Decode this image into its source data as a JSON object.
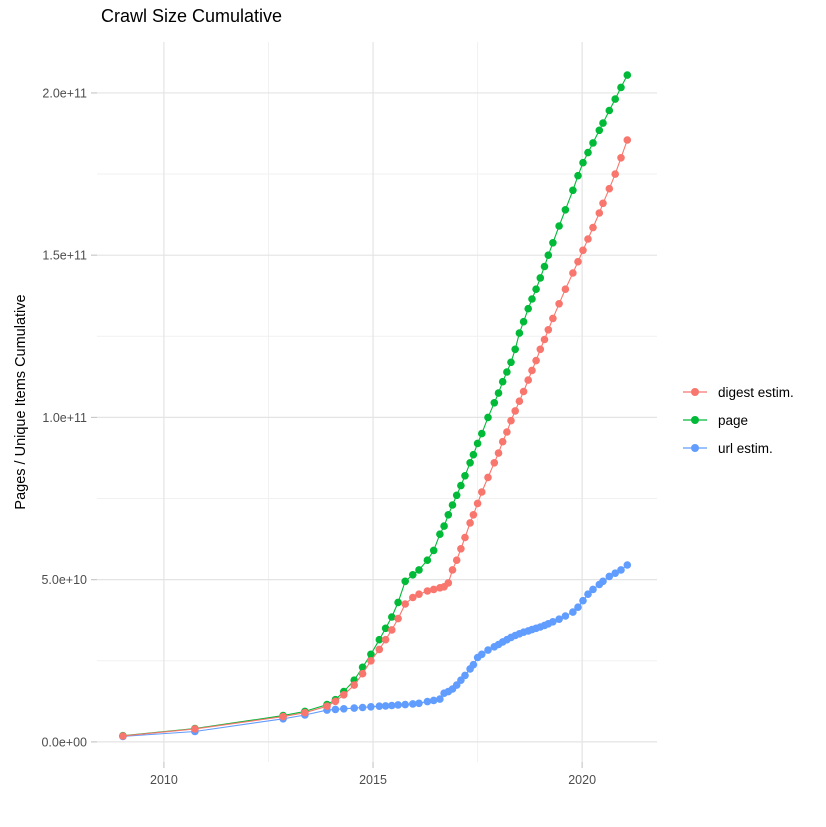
{
  "chart_data": {
    "type": "line",
    "title": "Crawl Size Cumulative",
    "xlabel": "",
    "ylabel": "Pages / Unique Items Cumulative",
    "x": [
      2009.02,
      2010.74,
      2012.85,
      2013.37,
      2013.9,
      2014.1,
      2014.3,
      2014.55,
      2014.75,
      2014.95,
      2015.15,
      2015.3,
      2015.45,
      2015.6,
      2015.77,
      2015.95,
      2016.1,
      2016.3,
      2016.45,
      2016.6,
      2016.7,
      2016.8,
      2016.9,
      2017.0,
      2017.1,
      2017.2,
      2017.32,
      2017.4,
      2017.5,
      2017.6,
      2017.75,
      2017.9,
      2018.0,
      2018.1,
      2018.2,
      2018.3,
      2018.4,
      2018.5,
      2018.6,
      2018.71,
      2018.8,
      2018.9,
      2019.0,
      2019.1,
      2019.19,
      2019.3,
      2019.45,
      2019.6,
      2019.78,
      2019.9,
      2020.02,
      2020.14,
      2020.26,
      2020.41,
      2020.5,
      2020.65,
      2020.79,
      2020.93,
      2021.08
    ],
    "series": [
      {
        "name": "digest estim.",
        "color": "#F8766D",
        "values": [
          1800000000.0,
          4000000000.0,
          7800000000.0,
          9000000000.0,
          11000000000.0,
          12500000000.0,
          14500000000.0,
          17500000000.0,
          21000000000.0,
          25000000000.0,
          28500000000.0,
          31500000000.0,
          34500000000.0,
          38000000000.0,
          42500000000.0,
          44500000000.0,
          45500000000.0,
          46500000000.0,
          47000000000.0,
          47500000000.0,
          47800000000.0,
          49000000000.0,
          53000000000.0,
          56000000000.0,
          59500000000.0,
          63000000000.0,
          67500000000.0,
          70000000000.0,
          73500000000.0,
          77000000000.0,
          81500000000.0,
          86000000000.0,
          89000000000.0,
          92500000000.0,
          95500000000.0,
          99000000000.0,
          102000000000.0,
          105000000000.0,
          108000000000.0,
          111500000000.0,
          114500000000.0,
          117500000000.0,
          121000000000.0,
          124000000000.0,
          127000000000.0,
          130500000000.0,
          135000000000.0,
          139500000000.0,
          144500000000.0,
          148000000000.0,
          151500000000.0,
          155000000000.0,
          158500000000.0,
          163000000000.0,
          166000000000.0,
          170500000000.0,
          175000000000.0,
          180000000000.0,
          185500000000.0
        ]
      },
      {
        "name": "page",
        "color": "#00BA38",
        "values": [
          1900000000.0,
          4100000000.0,
          8100000000.0,
          9400000000.0,
          11500000000.0,
          13000000000.0,
          15500000000.0,
          19000000000.0,
          23000000000.0,
          27000000000.0,
          31500000000.0,
          35000000000.0,
          38500000000.0,
          43000000000.0,
          49500000000.0,
          51500000000.0,
          53000000000.0,
          56000000000.0,
          59000000000.0,
          64000000000.0,
          66500000000.0,
          70000000000.0,
          73000000000.0,
          76000000000.0,
          79000000000.0,
          82000000000.0,
          86000000000.0,
          88500000000.0,
          92000000000.0,
          95000000000.0,
          100000000000.0,
          104500000000.0,
          107500000000.0,
          111000000000.0,
          114000000000.0,
          117000000000.0,
          121000000000.0,
          126000000000.0,
          129500000000.0,
          133500000000.0,
          136500000000.0,
          139500000000.0,
          143000000000.0,
          146500000000.0,
          150000000000.0,
          153800000000.0,
          159000000000.0,
          164000000000.0,
          170000000000.0,
          174500000000.0,
          178500000000.0,
          181600000000.0,
          184600000000.0,
          188500000000.0,
          190700000000.0,
          194600000000.0,
          198100000000.0,
          201700000000.0,
          205500000000.0
        ]
      },
      {
        "name": "url estim.",
        "color": "#619CFF",
        "values": [
          1700000000.0,
          3200000000.0,
          7100000000.0,
          8300000000.0,
          9800000000.0,
          10000000000.0,
          10200000000.0,
          10400000000.0,
          10600000000.0,
          10800000000.0,
          11000000000.0,
          11100000000.0,
          11200000000.0,
          11400000000.0,
          11500000000.0,
          11700000000.0,
          11900000000.0,
          12400000000.0,
          12800000000.0,
          13200000000.0,
          15000000000.0,
          15500000000.0,
          16300000000.0,
          17500000000.0,
          19000000000.0,
          20500000000.0,
          22500000000.0,
          23800000000.0,
          26000000000.0,
          27000000000.0,
          28300000000.0,
          29300000000.0,
          30000000000.0,
          30800000000.0,
          31500000000.0,
          32200000000.0,
          32800000000.0,
          33300000000.0,
          33800000000.0,
          34200000000.0,
          34600000000.0,
          35000000000.0,
          35400000000.0,
          35900000000.0,
          36400000000.0,
          37000000000.0,
          37800000000.0,
          38800000000.0,
          40000000000.0,
          41500000000.0,
          43500000000.0,
          45500000000.0,
          47000000000.0,
          48500000000.0,
          49500000000.0,
          51000000000.0,
          52000000000.0,
          53000000000.0,
          54500000000.0
        ]
      }
    ],
    "draw_order": [
      "url estim.",
      "page",
      "digest estim."
    ],
    "xlim": [
      2008.4,
      2021.79
    ],
    "ylim": [
      -6200000000.0,
      215700000000.0
    ],
    "x_ticks": {
      "values": [
        2010,
        2015,
        2020
      ],
      "labels": [
        "2010",
        "2015",
        "2020"
      ],
      "minor": [
        2012.5,
        2017.5
      ]
    },
    "y_ticks": {
      "values": [
        0,
        50000000000.0,
        100000000000.0,
        150000000000.0,
        200000000000.0
      ],
      "labels": [
        "0.0e+00",
        "5.0e+10",
        "1.0e+11",
        "1.5e+11",
        "2.0e+11"
      ],
      "minor": [
        25000000000.0,
        75000000000.0,
        125000000000.0,
        175000000000.0
      ]
    },
    "grid": true,
    "legend_position": "right",
    "point_radius": 3.8
  },
  "legend": {
    "items": [
      {
        "label": "digest estim.",
        "color": "#F8766D"
      },
      {
        "label": "page",
        "color": "#00BA38"
      },
      {
        "label": "url estim.",
        "color": "#619CFF"
      }
    ]
  },
  "colors": {
    "background": "#FFFFFF",
    "grid_major": "#E4E4E4",
    "grid_minor": "#F1F1F1",
    "tick_mark": "#C9C9C9",
    "axis_text": "#4D4D4D",
    "digest": "#F8766D",
    "page": "#00BA38",
    "url": "#619CFF"
  }
}
